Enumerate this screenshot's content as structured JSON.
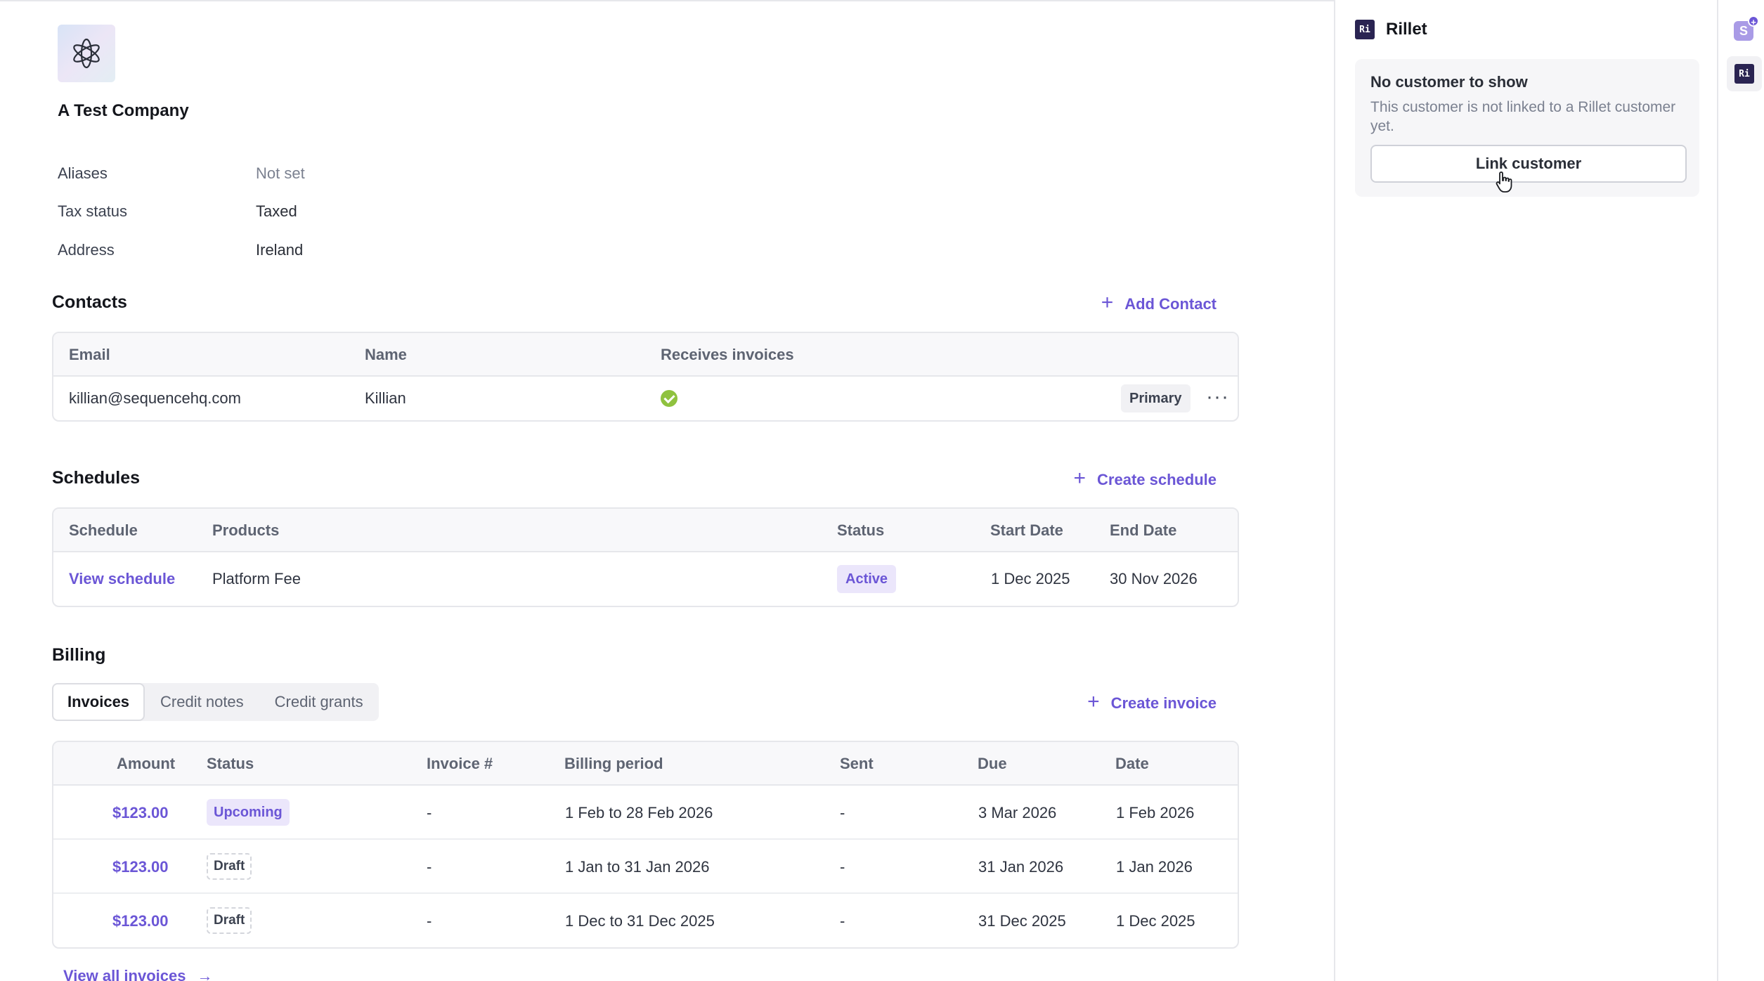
{
  "company": {
    "name": "A Test Company",
    "logo_icon": "atom-flower-icon"
  },
  "details": [
    {
      "label": "Aliases",
      "value": "Not set"
    },
    {
      "label": "Tax status",
      "value": "Taxed"
    },
    {
      "label": "Address",
      "value": "Ireland"
    }
  ],
  "contacts": {
    "title": "Contacts",
    "action": "Add Contact",
    "headers": {
      "email": "Email",
      "name": "Name",
      "receives": "Receives invoices"
    },
    "rows": [
      {
        "email": "killian@sequencehq.com",
        "name": "Killian",
        "receives_invoices": true,
        "badge": "Primary"
      }
    ]
  },
  "schedules": {
    "title": "Schedules",
    "action": "Create schedule",
    "headers": {
      "schedule": "Schedule",
      "products": "Products",
      "status": "Status",
      "start": "Start Date",
      "end": "End Date"
    },
    "rows": [
      {
        "schedule": "View schedule",
        "products": "Platform Fee",
        "status": "Active",
        "start": "1 Dec 2025",
        "end": "30 Nov 2026"
      }
    ]
  },
  "billing": {
    "title": "Billing",
    "tabs": [
      "Invoices",
      "Credit notes",
      "Credit grants"
    ],
    "active_tab": "Invoices",
    "action": "Create invoice",
    "headers": {
      "amount": "Amount",
      "status": "Status",
      "invoice": "Invoice #",
      "period": "Billing period",
      "sent": "Sent",
      "due": "Due",
      "date": "Date"
    },
    "rows": [
      {
        "amount": "$123.00",
        "status": "Upcoming",
        "invoice": "-",
        "period": "1 Feb to 28 Feb 2026",
        "sent": "-",
        "due": "3 Mar 2026",
        "date": "1 Feb 2026"
      },
      {
        "amount": "$123.00",
        "status": "Draft",
        "invoice": "-",
        "period": "1 Jan to 31 Jan 2026",
        "sent": "-",
        "due": "31 Jan 2026",
        "date": "1 Jan 2026"
      },
      {
        "amount": "$123.00",
        "status": "Draft",
        "invoice": "-",
        "period": "1 Dec to 31 Dec 2025",
        "sent": "-",
        "due": "31 Dec 2025",
        "date": "1 Dec 2025"
      }
    ],
    "view_all": "View all invoices"
  },
  "panel": {
    "icon_text": "Ri",
    "title": "Rillet",
    "card_title": "No customer to show",
    "card_desc": "This customer is not linked to a Rillet customer yet.",
    "button": "Link customer"
  },
  "rail": {
    "s_icon_text": "S",
    "badge_text": "+",
    "ri_icon_text": "Ri"
  },
  "colors": {
    "accent": "#6b56d6",
    "success": "#8fc23f",
    "border": "#e6e7eb"
  }
}
